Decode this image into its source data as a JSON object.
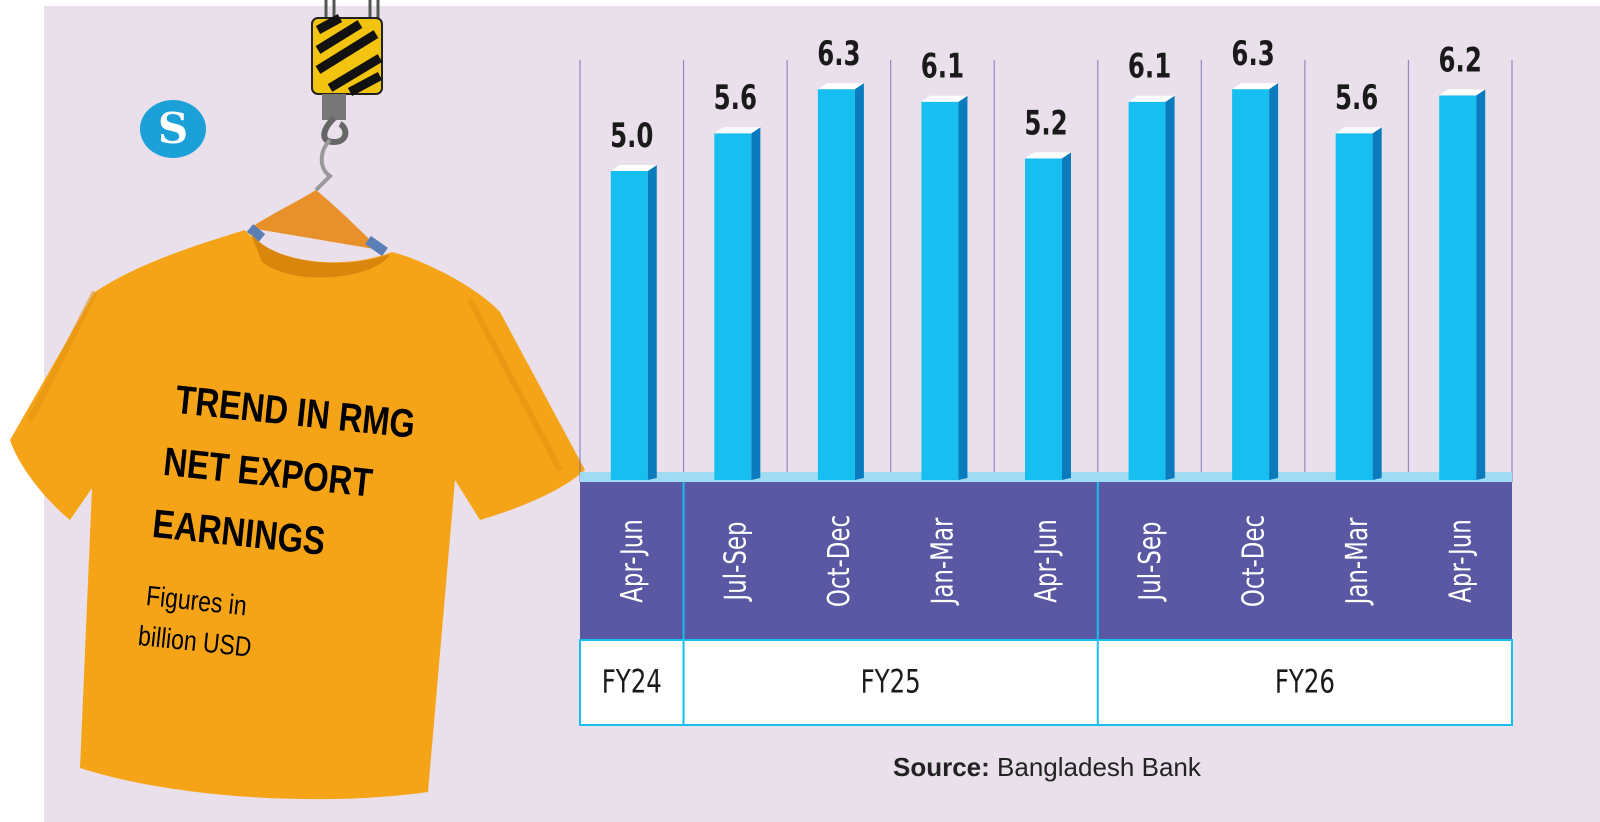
{
  "title_lines": [
    "TREND IN RMG",
    "NET EXPORT",
    "EARNINGS"
  ],
  "subtitle_lines": [
    "Figures in",
    "billion USD"
  ],
  "logo_text": "S",
  "source_label": "Source:",
  "source_text": "Bangladesh Bank",
  "colors": {
    "background": "#e9e0ec",
    "bar_front": "#17bff0",
    "bar_side": "#0a7bbd",
    "category_band": "#5a57a3",
    "baseline_strip": "#9fdcf2",
    "gridline": "#6b63b3",
    "shirt": "#f5a418"
  },
  "chart_data": {
    "type": "bar",
    "categories": [
      "Apr-Jun",
      "Jul-Sep",
      "Oct-Dec",
      "Jan-Mar",
      "Apr-Jun",
      "Jul-Sep",
      "Oct-Dec",
      "Jan-Mar",
      "Apr-Jun"
    ],
    "values": [
      5.0,
      5.6,
      6.3,
      6.1,
      5.2,
      6.1,
      6.3,
      5.6,
      6.2
    ],
    "value_labels": [
      "5.0",
      "5.6",
      "6.3",
      "6.1",
      "5.2",
      "6.1",
      "6.3",
      "5.6",
      "6.2"
    ],
    "groups": [
      {
        "label": "FY24",
        "count": 1
      },
      {
        "label": "FY25",
        "count": 4
      },
      {
        "label": "FY26",
        "count": 4
      }
    ],
    "ylim": [
      0,
      7
    ],
    "grid": false,
    "legend": "none"
  }
}
